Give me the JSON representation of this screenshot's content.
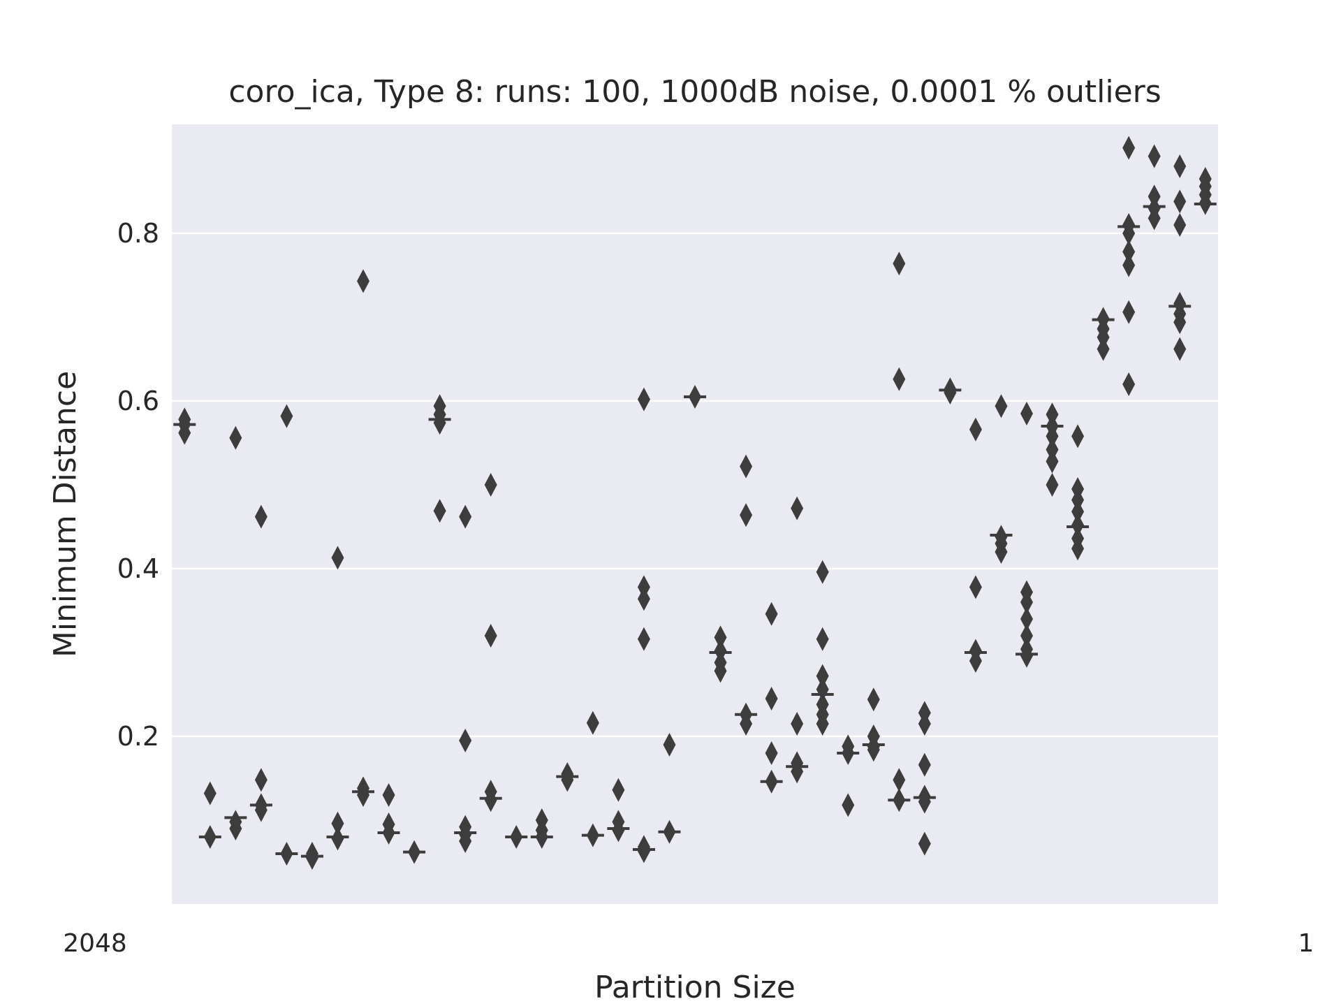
{
  "chart_data": {
    "type": "box",
    "title": "coro_ica,  Type 8:  runs: 100, 1000dB noise, 0.0001 % outliers",
    "xlabel": "Partition Size",
    "ylabel": "Minimum Distance",
    "ylim": [
      0.0,
      0.93
    ],
    "yticks": [
      0.2,
      0.4,
      0.6,
      0.8
    ],
    "grid": "horizontal",
    "background": "#eaeaf2",
    "mark_color": "#3d3d3d",
    "x_tick_text_first": "2048",
    "x_tick_text_last": "1",
    "series": [
      {
        "median": 0.572,
        "outliers": [
          0.578,
          0.572,
          0.562
        ]
      },
      {
        "median": 0.08,
        "outliers": [
          0.132,
          0.08
        ]
      },
      {
        "median": 0.103,
        "outliers": [
          0.556,
          0.098,
          0.09
        ]
      },
      {
        "median": 0.118,
        "outliers": [
          0.462,
          0.148,
          0.118,
          0.112
        ]
      },
      {
        "median": 0.06,
        "outliers": [
          0.582,
          0.06
        ]
      },
      {
        "median": 0.057,
        "outliers": [
          0.06,
          0.055
        ]
      },
      {
        "median": 0.08,
        "outliers": [
          0.413,
          0.096,
          0.078
        ]
      },
      {
        "median": 0.134,
        "outliers": [
          0.743,
          0.138,
          0.13
        ]
      },
      {
        "median": 0.085,
        "outliers": [
          0.13,
          0.095,
          0.085
        ]
      },
      {
        "median": 0.062,
        "outliers": [
          0.062
        ]
      },
      {
        "median": 0.578,
        "outliers": [
          0.594,
          0.584,
          0.574,
          0.469
        ]
      },
      {
        "median": 0.085,
        "outliers": [
          0.462,
          0.195,
          0.092,
          0.083,
          0.075
        ]
      },
      {
        "median": 0.126,
        "outliers": [
          0.5,
          0.32,
          0.134,
          0.124
        ]
      },
      {
        "median": 0.08,
        "outliers": [
          0.08
        ]
      },
      {
        "median": 0.08,
        "outliers": [
          0.1,
          0.088,
          0.08
        ]
      },
      {
        "median": 0.152,
        "outliers": [
          0.155,
          0.148
        ]
      },
      {
        "median": 0.082,
        "outliers": [
          0.216,
          0.082
        ]
      },
      {
        "median": 0.09,
        "outliers": [
          0.136,
          0.098,
          0.088
        ]
      },
      {
        "median": 0.065,
        "outliers": [
          0.602,
          0.378,
          0.364,
          0.316,
          0.068,
          0.063
        ]
      },
      {
        "median": 0.086,
        "outliers": [
          0.19,
          0.086
        ]
      },
      {
        "median": 0.605,
        "outliers": [
          0.605
        ]
      },
      {
        "median": 0.3,
        "outliers": [
          0.318,
          0.302,
          0.288,
          0.278
        ]
      },
      {
        "median": 0.226,
        "outliers": [
          0.522,
          0.464,
          0.226,
          0.215
        ]
      },
      {
        "median": 0.146,
        "outliers": [
          0.346,
          0.245,
          0.18,
          0.146
        ]
      },
      {
        "median": 0.164,
        "outliers": [
          0.472,
          0.215,
          0.168,
          0.158
        ]
      },
      {
        "median": 0.25,
        "outliers": [
          0.396,
          0.316,
          0.272,
          0.256,
          0.238,
          0.226,
          0.215
        ]
      },
      {
        "median": 0.18,
        "outliers": [
          0.188,
          0.18,
          0.118
        ]
      },
      {
        "median": 0.19,
        "outliers": [
          0.244,
          0.2,
          0.188,
          0.184
        ]
      },
      {
        "median": 0.124,
        "outliers": [
          0.764,
          0.626,
          0.148,
          0.124
        ]
      },
      {
        "median": 0.127,
        "outliers": [
          0.228,
          0.215,
          0.166,
          0.128,
          0.122,
          0.072
        ]
      },
      {
        "median": 0.613,
        "outliers": [
          0.614,
          0.61
        ]
      },
      {
        "median": 0.3,
        "outliers": [
          0.566,
          0.378,
          0.302,
          0.29
        ]
      },
      {
        "median": 0.44,
        "outliers": [
          0.594,
          0.438,
          0.43,
          0.42
        ]
      },
      {
        "median": 0.298,
        "outliers": [
          0.585,
          0.372,
          0.36,
          0.34,
          0.32,
          0.304,
          0.296
        ]
      },
      {
        "median": 0.57,
        "outliers": [
          0.584,
          0.57,
          0.558,
          0.542,
          0.528,
          0.5
        ]
      },
      {
        "median": 0.45,
        "outliers": [
          0.558,
          0.495,
          0.482,
          0.468,
          0.452,
          0.436,
          0.424
        ]
      },
      {
        "median": 0.697,
        "outliers": [
          0.698,
          0.686,
          0.676,
          0.662
        ]
      },
      {
        "median": 0.808,
        "outliers": [
          0.902,
          0.81,
          0.8,
          0.778,
          0.762,
          0.706,
          0.62
        ]
      },
      {
        "median": 0.832,
        "outliers": [
          0.892,
          0.844,
          0.83,
          0.818
        ]
      },
      {
        "median": 0.713,
        "outliers": [
          0.88,
          0.838,
          0.81,
          0.716,
          0.704,
          0.694,
          0.662
        ]
      },
      {
        "median": 0.835,
        "outliers": [
          0.865,
          0.856,
          0.846,
          0.836
        ]
      }
    ]
  }
}
